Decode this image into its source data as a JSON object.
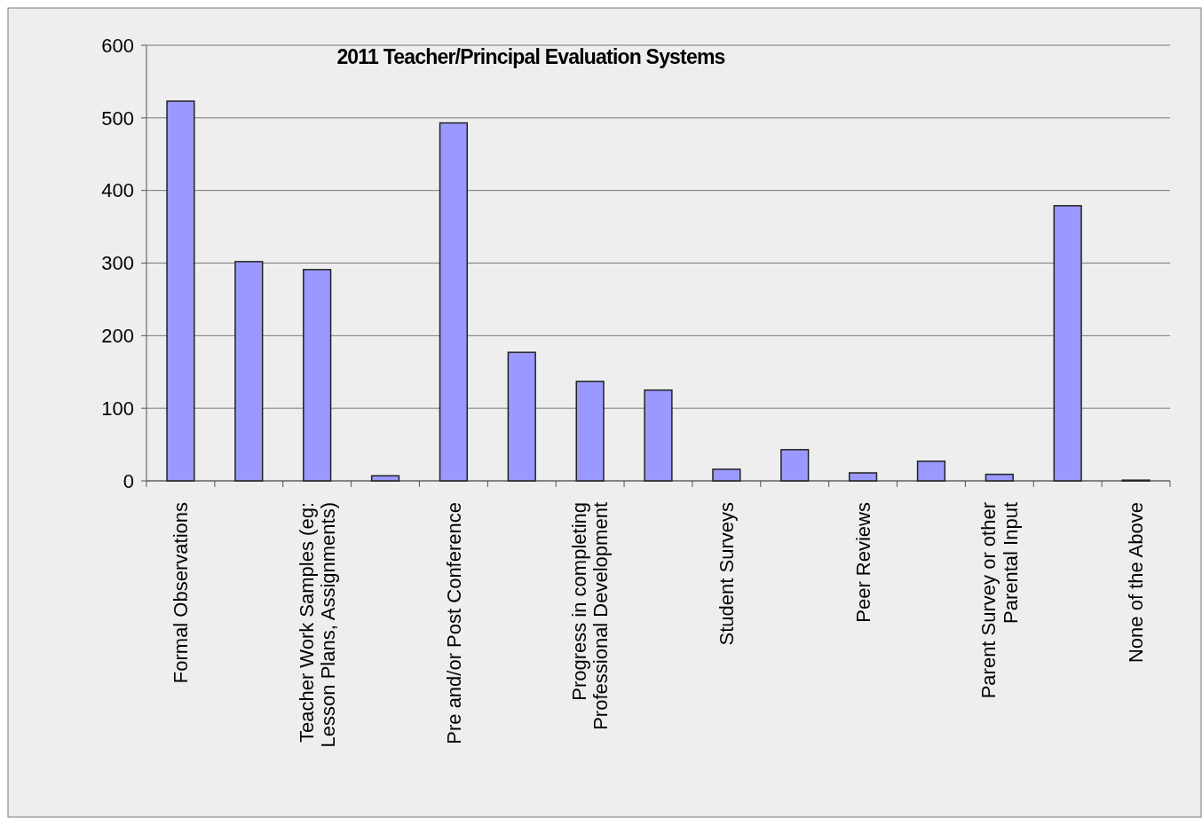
{
  "chart_data": {
    "type": "bar",
    "title": "2011 Teacher/Principal Evaluation Systems",
    "categories": [
      "Formal Observations",
      null,
      "Teacher Work Samples (eg:\nLesson Plans, Assignments)",
      null,
      "Pre and/or Post Conference",
      null,
      "Progress in completing\nProfessional Development",
      null,
      "Student Surveys",
      null,
      "Peer Reviews",
      null,
      "Parent Survey or other\nParental Input",
      null,
      "None of the Above"
    ],
    "values": [
      523,
      302,
      291,
      7,
      493,
      177,
      137,
      125,
      16,
      43,
      11,
      27,
      9,
      379,
      1
    ],
    "color": "#9999ff",
    "ylim": [
      0,
      600
    ],
    "yticks": [
      0,
      100,
      200,
      300,
      400,
      500,
      600
    ],
    "grid": "y"
  }
}
